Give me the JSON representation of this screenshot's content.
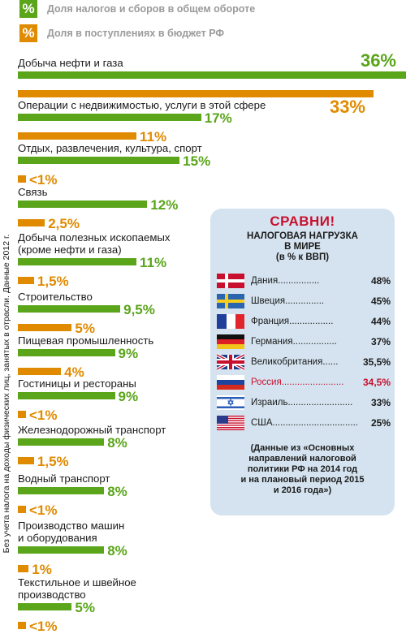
{
  "legend": [
    {
      "symbol": "%",
      "label": "Доля налогов и сборов в общем обороте",
      "color": "#5aa51a"
    },
    {
      "symbol": "%",
      "label": "Доля в поступлениях в бюджет РФ",
      "color": "#e08a00"
    }
  ],
  "side_note": "Без учета налога на доходы физических лиц, занятых в отрасли. Данные 2012 г.",
  "chart_data": {
    "type": "bar",
    "orientation": "horizontal",
    "categories": [
      "Добыча нефти и газа",
      "Операции с недвижимостью, услуги в этой сфере",
      "Отдых, развлечения, культура, спорт",
      "Связь",
      "Добыча полезных ископаемых\n(кроме нефти и газа)",
      "Строительство",
      "Пищевая промышленность",
      "Гостиницы и рестораны",
      "Железнодорожный транспорт",
      "Водный транспорт",
      "Производство машин\nи оборудования",
      "Текстильное и швейное\nпроизводство"
    ],
    "series": [
      {
        "name": "Доля налогов и сборов в общем обороте",
        "values": [
          36,
          17,
          15,
          12,
          11,
          9.5,
          9,
          9,
          8,
          8,
          8,
          5
        ],
        "labels": [
          "36%",
          "17%",
          "15%",
          "12%",
          "11%",
          "9,5%",
          "9%",
          "9%",
          "8%",
          "8%",
          "8%",
          "5%"
        ]
      },
      {
        "name": "Доля в поступлениях в бюджет РФ",
        "values": [
          33,
          11,
          0.5,
          2.5,
          1.5,
          5,
          4,
          0.5,
          1.5,
          0.5,
          1,
          0.5
        ],
        "labels": [
          "33%",
          "11%",
          "<1%",
          "2,5%",
          "1,5%",
          "5%",
          "4%",
          "<1%",
          "1,5%",
          "<1%",
          "1%",
          "<1%"
        ]
      }
    ],
    "unit": "%"
  },
  "compare": {
    "heading": "СРАВНИ!",
    "title": "НАЛОГОВАЯ НАГРУЗКА\nВ МИРЕ\n(в % к ВВП)",
    "countries": [
      {
        "name": "Дания",
        "dots": "................",
        "value": "48%",
        "flag": "denmark",
        "highlight": false
      },
      {
        "name": "Швеция",
        "dots": "...............",
        "value": "45%",
        "flag": "sweden",
        "highlight": false
      },
      {
        "name": "Франция",
        "dots": ".................",
        "value": "44%",
        "flag": "france",
        "highlight": false
      },
      {
        "name": "Германия",
        "dots": ".................",
        "value": "37%",
        "flag": "germany",
        "highlight": false
      },
      {
        "name": "Великобритания",
        "dots": "......",
        "value": "35,5%",
        "flag": "uk",
        "highlight": false
      },
      {
        "name": "Россия",
        "dots": "........................",
        "value": "34,5%",
        "flag": "russia",
        "highlight": true
      },
      {
        "name": "Израиль",
        "dots": ".........................",
        "value": "33%",
        "flag": "israel",
        "highlight": false
      },
      {
        "name": "США",
        "dots": ".................................",
        "value": "25%",
        "flag": "usa",
        "highlight": false
      }
    ],
    "note": "(Данные из «Основных\nнаправлений налоговой\nполитики РФ на 2014 год\nи  на плановый период 2015\nи 2016 года»)"
  },
  "colors": {
    "tax": "#5aa51a",
    "budget": "#e08a00",
    "panel_bg": "#d4e3ef",
    "accent_red": "#c8102e"
  }
}
